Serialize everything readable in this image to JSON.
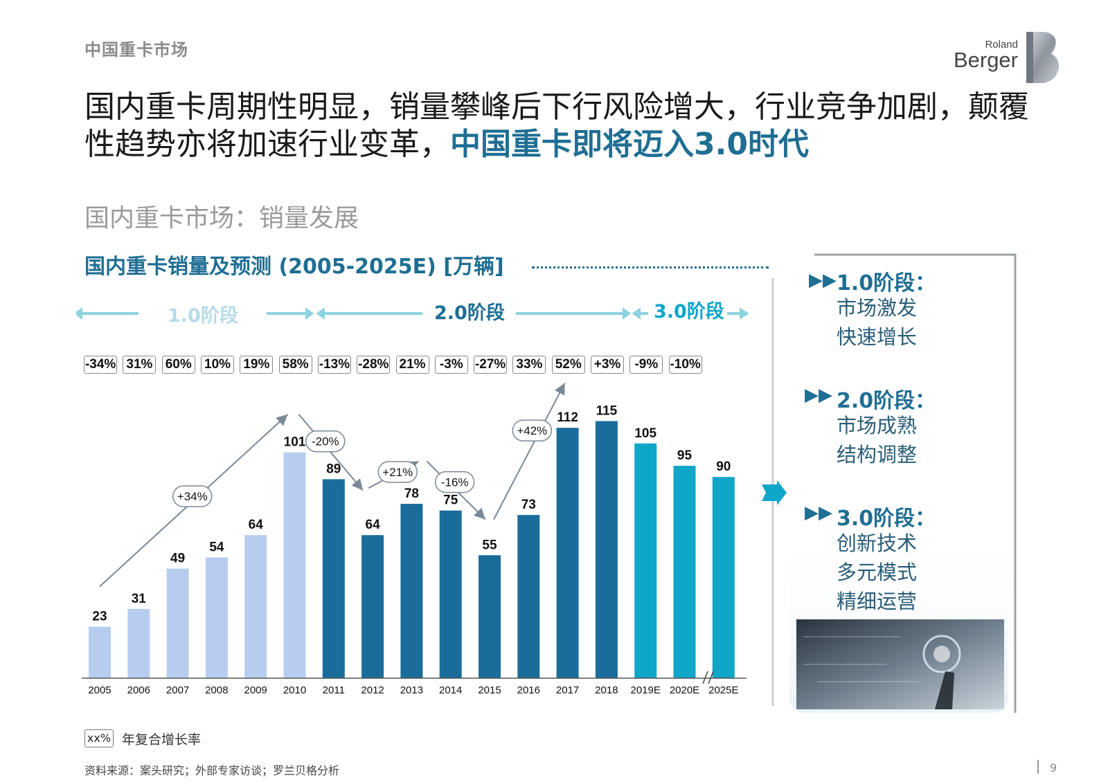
{
  "header": {
    "section_tag": "中国重卡市场",
    "logo_small": "Roland",
    "logo_big": "Berger",
    "headline_part1": "国内重卡周期性明显，销量攀峰后下行风险增大，行业竞争加剧，颠覆性趋势亦将加速行业变革，",
    "headline_highlight": "中国重卡即将迈入3.0时代"
  },
  "subhead": "国内重卡市场：销量发展",
  "chart_title": "国内重卡销量及预测 (2005-2025E) [万辆]",
  "phases": [
    "1.0阶段",
    "2.0阶段",
    "3.0阶段"
  ],
  "growth_rates": [
    "-34%",
    "31%",
    "60%",
    "10%",
    "19%",
    "58%",
    "-13%",
    "-28%",
    "21%",
    "-3%",
    "-27%",
    "33%",
    "52%",
    "+3%",
    "-9%",
    "-10%"
  ],
  "trend_annotations": [
    "+34%",
    "-20%",
    "+21%",
    "-16%",
    "+42%"
  ],
  "legend": {
    "box": "xx%",
    "text": "年复合增长率"
  },
  "source": "资料来源：案头研究；外部专家访谈；罗兰贝格分析",
  "page_number": "9",
  "stages": [
    {
      "title": "1.0阶段：",
      "lines": [
        "市场激发",
        "快速增长"
      ]
    },
    {
      "title": "2.0阶段：",
      "lines": [
        "市场成熟",
        "结构调整"
      ]
    },
    {
      "title": "3.0阶段：",
      "lines": [
        "创新技术",
        "多元模式",
        "精细运营"
      ]
    }
  ],
  "colors": {
    "phase1": "#b7cdf0",
    "phase2": "#1a6d9a",
    "phase3": "#0fa6c8",
    "accent": "#1f6e93"
  },
  "chart_data": {
    "type": "bar",
    "categories": [
      "2005",
      "2006",
      "2007",
      "2008",
      "2009",
      "2010",
      "2011",
      "2012",
      "2013",
      "2014",
      "2015",
      "2016",
      "2017",
      "2018",
      "2019E",
      "2020E",
      "2025E"
    ],
    "values": [
      23,
      31,
      49,
      54,
      64,
      101,
      89,
      64,
      78,
      75,
      55,
      73,
      112,
      115,
      105,
      95,
      90
    ],
    "phase_of_bar": [
      1,
      1,
      1,
      1,
      1,
      1,
      2,
      2,
      2,
      2,
      2,
      2,
      2,
      2,
      3,
      3,
      3
    ],
    "title": "国内重卡销量及预测 (2005-2025E) [万辆]",
    "xlabel": "",
    "ylabel": "",
    "ylim": [
      0,
      130
    ],
    "grid": false,
    "legend": "none"
  }
}
